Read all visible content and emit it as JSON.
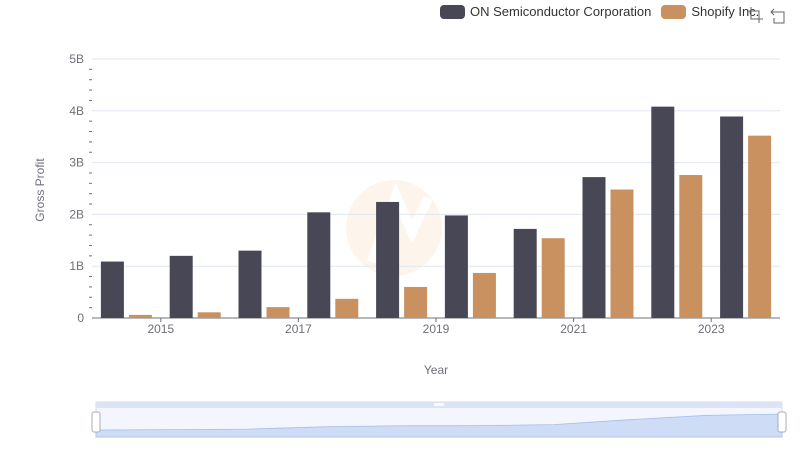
{
  "chart_data": {
    "type": "bar",
    "x": [
      2014,
      2015,
      2016,
      2017,
      2018,
      2019,
      2020,
      2021,
      2022,
      2023
    ],
    "xticks": [
      "2015",
      "2017",
      "2019",
      "2021",
      "2023"
    ],
    "series": [
      {
        "name": "ON Semiconductor Corporation",
        "color": "#484755",
        "values": [
          1.09,
          1.2,
          1.3,
          2.04,
          2.24,
          1.98,
          1.72,
          2.72,
          4.08,
          3.89
        ]
      },
      {
        "name": "Shopify Inc.",
        "color": "#c9915f",
        "values": [
          0.06,
          0.11,
          0.21,
          0.37,
          0.6,
          0.87,
          1.54,
          2.48,
          2.76,
          3.52
        ]
      }
    ],
    "yticks": [
      "0",
      "1B",
      "2B",
      "3B",
      "4B",
      "5B"
    ],
    "ylim": [
      0,
      5
    ],
    "xlabel": "Year",
    "ylabel": "Gross Profit",
    "grid": true,
    "legend_position": "top-right"
  },
  "icons": {
    "zoom": "zoom-icon",
    "restore": "restore-icon"
  }
}
